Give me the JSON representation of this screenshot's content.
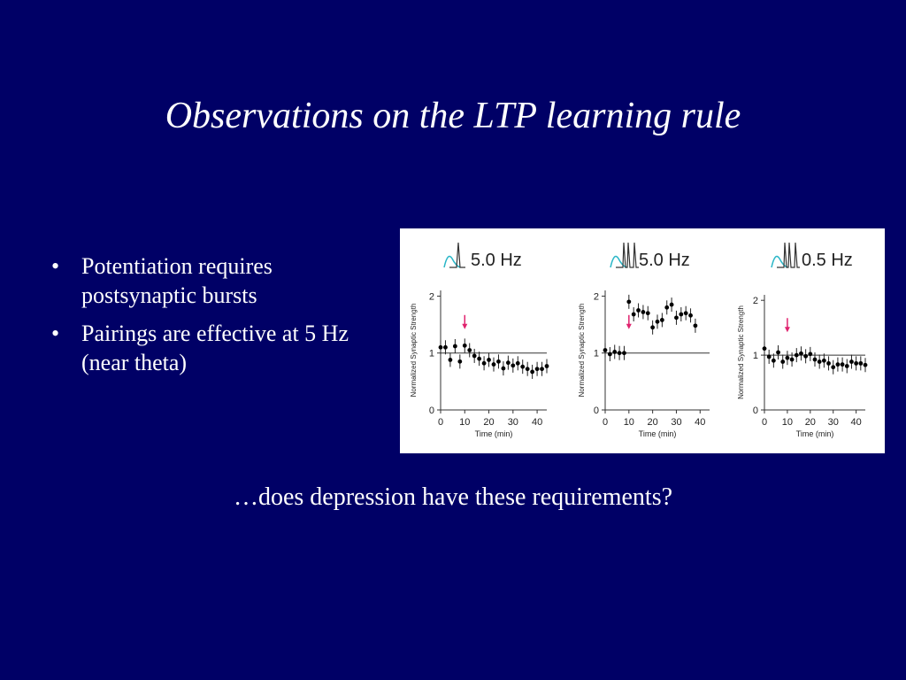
{
  "slide": {
    "title": "Observations on the LTP learning rule",
    "bullets": [
      "Potentiation requires postsynaptic bursts",
      "Pairings are effective at 5 Hz (near theta)"
    ],
    "bullet_glyph": "•",
    "question": "…does depression have these requirements?"
  },
  "colors": {
    "background": "#000066",
    "text": "#ffffff",
    "arrow": "#e0226e",
    "trace": "#29b6c7",
    "points": "#000000"
  },
  "chart_data": [
    {
      "type": "scatter",
      "title": "5.0 Hz",
      "xlabel": "Time (min)",
      "ylabel": "Normalized Synaptic Strength",
      "xticks": [
        0,
        10,
        20,
        30,
        40
      ],
      "yticks": [
        0,
        1,
        2
      ],
      "xlim": [
        0,
        44
      ],
      "ylim": [
        0,
        2.1
      ],
      "baseline": 1,
      "pairing_time": 10,
      "trace_icon": "single-spike-with-psp-icon",
      "points": [
        [
          0,
          1.1
        ],
        [
          2,
          1.1
        ],
        [
          4,
          0.88
        ],
        [
          6,
          1.12
        ],
        [
          8,
          0.85
        ],
        [
          10,
          1.13
        ],
        [
          12,
          1.05
        ],
        [
          14,
          0.95
        ],
        [
          16,
          0.9
        ],
        [
          18,
          0.82
        ],
        [
          20,
          0.88
        ],
        [
          22,
          0.8
        ],
        [
          24,
          0.85
        ],
        [
          26,
          0.73
        ],
        [
          28,
          0.83
        ],
        [
          30,
          0.78
        ],
        [
          32,
          0.82
        ],
        [
          34,
          0.76
        ],
        [
          36,
          0.72
        ],
        [
          38,
          0.67
        ],
        [
          40,
          0.72
        ],
        [
          42,
          0.72
        ],
        [
          44,
          0.77
        ]
      ]
    },
    {
      "type": "scatter",
      "title": "5.0 Hz",
      "xlabel": "Time (min)",
      "ylabel": "Normalized Synaptic Strength",
      "xticks": [
        0,
        10,
        20,
        30,
        40
      ],
      "yticks": [
        0,
        1,
        2
      ],
      "xlim": [
        0,
        44
      ],
      "ylim": [
        0,
        2.1
      ],
      "baseline": 1,
      "pairing_time": 10,
      "trace_icon": "burst-with-psp-icon",
      "points": [
        [
          0,
          1.05
        ],
        [
          2,
          0.98
        ],
        [
          4,
          1.02
        ],
        [
          6,
          1.0
        ],
        [
          8,
          1.0
        ],
        [
          10,
          1.9
        ],
        [
          12,
          1.68
        ],
        [
          14,
          1.75
        ],
        [
          16,
          1.72
        ],
        [
          18,
          1.7
        ],
        [
          20,
          1.45
        ],
        [
          22,
          1.55
        ],
        [
          24,
          1.58
        ],
        [
          26,
          1.8
        ],
        [
          28,
          1.85
        ],
        [
          30,
          1.62
        ],
        [
          32,
          1.68
        ],
        [
          34,
          1.7
        ],
        [
          36,
          1.66
        ],
        [
          38,
          1.48
        ]
      ]
    },
    {
      "type": "scatter",
      "title": "0.5 Hz",
      "xlabel": "Time (min)",
      "ylabel": "Normalized Synaptic Strength",
      "xticks": [
        0,
        10,
        20,
        30,
        40
      ],
      "yticks": [
        0,
        1,
        2
      ],
      "xlim": [
        0,
        44
      ],
      "ylim": [
        0,
        2.1
      ],
      "baseline": 1,
      "pairing_time": 10,
      "trace_icon": "burst-with-psp-icon",
      "points": [
        [
          0,
          1.12
        ],
        [
          2,
          0.97
        ],
        [
          4,
          0.9
        ],
        [
          6,
          1.05
        ],
        [
          8,
          0.88
        ],
        [
          10,
          0.95
        ],
        [
          12,
          0.92
        ],
        [
          14,
          1.0
        ],
        [
          16,
          1.03
        ],
        [
          18,
          0.98
        ],
        [
          20,
          1.02
        ],
        [
          22,
          0.92
        ],
        [
          24,
          0.88
        ],
        [
          26,
          0.9
        ],
        [
          28,
          0.85
        ],
        [
          30,
          0.78
        ],
        [
          32,
          0.83
        ],
        [
          34,
          0.83
        ],
        [
          36,
          0.8
        ],
        [
          38,
          0.88
        ],
        [
          40,
          0.85
        ],
        [
          42,
          0.85
        ],
        [
          44,
          0.82
        ]
      ]
    }
  ]
}
